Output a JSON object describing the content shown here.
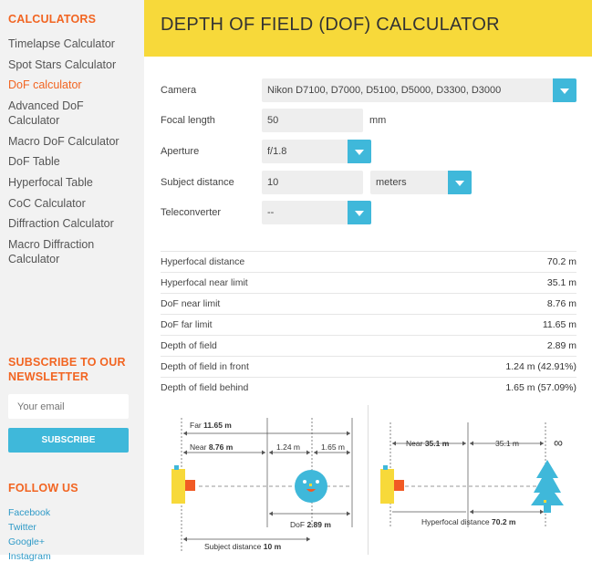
{
  "sidebar": {
    "calculators_heading": "CALCULATORS",
    "items": [
      {
        "label": "Timelapse Calculator"
      },
      {
        "label": "Spot Stars Calculator"
      },
      {
        "label": "DoF calculator"
      },
      {
        "label": "Advanced DoF Calculator"
      },
      {
        "label": "Macro DoF Calculator"
      },
      {
        "label": "DoF Table"
      },
      {
        "label": "Hyperfocal Table"
      },
      {
        "label": "CoC Calculator"
      },
      {
        "label": "Diffraction Calculator"
      },
      {
        "label": "Macro Diffraction Calculator"
      }
    ],
    "subscribe_heading": "SUBSCRIBE TO OUR NEWSLETTER",
    "email_placeholder": "Your email",
    "subscribe_button": "SUBSCRIBE",
    "follow_heading": "FOLLOW US",
    "social": [
      {
        "label": "Facebook"
      },
      {
        "label": "Twitter"
      },
      {
        "label": "Google+"
      },
      {
        "label": "Instagram"
      }
    ]
  },
  "header": {
    "title": "DEPTH OF FIELD (DOF) CALCULATOR"
  },
  "form": {
    "camera_label": "Camera",
    "camera_value": "Nikon D7100, D7000, D5100, D5000, D3300, D3000",
    "focal_label": "Focal length",
    "focal_value": "50",
    "focal_unit": "mm",
    "aperture_label": "Aperture",
    "aperture_value": "f/1.8",
    "subject_label": "Subject distance",
    "subject_value": "10",
    "subject_unit": "meters",
    "tele_label": "Teleconverter",
    "tele_value": "--"
  },
  "results": [
    {
      "label": "Hyperfocal distance",
      "value": "70.2 m"
    },
    {
      "label": "Hyperfocal near limit",
      "value": "35.1 m"
    },
    {
      "label": "DoF near limit",
      "value": "8.76 m"
    },
    {
      "label": "DoF far limit",
      "value": "11.65 m"
    },
    {
      "label": "Depth of field",
      "value": "2.89 m"
    },
    {
      "label": "Depth of field in front",
      "value": "1.24 m (42.91%)"
    },
    {
      "label": "Depth of field behind",
      "value": "1.65 m (57.09%)"
    }
  ],
  "diagram1": {
    "far_label": "Far",
    "far_value": "11.65 m",
    "near_label": "Near",
    "near_value": "8.76 m",
    "front_value": "1.24 m",
    "behind_value": "1.65 m",
    "dof_label": "DoF",
    "dof_value": "2.89 m",
    "subject_label": "Subject distance",
    "subject_value": "10 m"
  },
  "diagram2": {
    "near_label": "Near",
    "near_value": "35.1 m",
    "mid_value": "35.1 m",
    "infinity": "∞",
    "hyper_label": "Hyperfocal distance",
    "hyper_value": "70.2 m"
  },
  "colors": {
    "accent": "#f26522",
    "banner": "#f7d93a",
    "blue": "#3fb8da",
    "camera": "#f7d93a",
    "lens": "#f15a24"
  }
}
